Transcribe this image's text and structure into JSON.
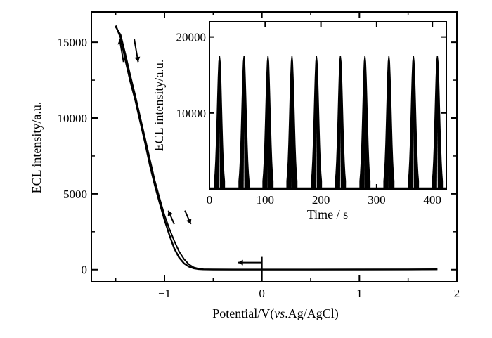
{
  "chart_data": [
    {
      "type": "line",
      "title": "",
      "xlabel_main": "Potential/V(",
      "xlabel_italic": "vs",
      "xlabel_tail": ".Ag/AgCl)",
      "ylabel": "ECL intensity/a.u.",
      "xlim": [
        -1.75,
        2.0
      ],
      "ylim": [
        -800,
        17000
      ],
      "xticks": [
        -1,
        0,
        1,
        2
      ],
      "xtick_labels": [
        "−1",
        "0",
        "1",
        "2"
      ],
      "yticks": [
        0,
        5000,
        10000,
        15000
      ],
      "ytick_labels": [
        "0",
        "5000",
        "10000",
        "15000"
      ],
      "series": [
        {
          "x": [
            -1.5,
            -1.45,
            -1.4,
            -1.35,
            -1.3,
            -1.25,
            -1.2,
            -1.15,
            -1.1,
            -1.05,
            -1.0,
            -0.95,
            -0.9,
            -0.85,
            -0.8,
            -0.75,
            -0.7,
            -0.65,
            -0.6,
            -0.5,
            -0.3,
            0.0,
            0.5,
            1.0,
            1.5,
            1.8
          ],
          "y": [
            16100,
            15300,
            13800,
            12400,
            11200,
            9800,
            8400,
            6900,
            5600,
            4400,
            3300,
            2300,
            1400,
            800,
            420,
            200,
            90,
            40,
            20,
            10,
            5,
            5,
            8,
            10,
            15,
            25
          ]
        },
        {
          "x": [
            -1.5,
            -1.45,
            -1.4,
            -1.35,
            -1.3,
            -1.25,
            -1.2,
            -1.15,
            -1.1,
            -1.05,
            -1.0,
            -0.95,
            -0.9,
            -0.85,
            -0.8,
            -0.75,
            -0.7,
            -0.65,
            -0.6,
            -0.5,
            -0.3,
            0.0,
            0.5,
            1.0,
            1.5,
            1.8
          ],
          "y": [
            16000,
            15500,
            14200,
            12800,
            11500,
            10100,
            8700,
            7300,
            5900,
            4700,
            3600,
            2700,
            1900,
            1200,
            700,
            350,
            150,
            60,
            25,
            10,
            5,
            5,
            8,
            10,
            15,
            25
          ]
        }
      ],
      "annotations": [
        {
          "type": "arrow",
          "at_x": 0.0,
          "at_y": 100,
          "direction": "left"
        }
      ]
    },
    {
      "type": "line",
      "title": "",
      "xlabel": "Time / s",
      "ylabel": "ECL intensity/a.u.",
      "xlim": [
        0,
        425
      ],
      "ylim": [
        0,
        22000
      ],
      "xticks": [
        0,
        100,
        200,
        300,
        400
      ],
      "xtick_labels": [
        "0",
        "100",
        "200",
        "300",
        "400"
      ],
      "yticks": [
        10000,
        20000
      ],
      "ytick_labels": [
        "10000",
        "20000"
      ],
      "peak_times": [
        18,
        62,
        105,
        148,
        192,
        235,
        279,
        322,
        366,
        409
      ],
      "peak_height": 17500,
      "baseline": 0
    }
  ]
}
